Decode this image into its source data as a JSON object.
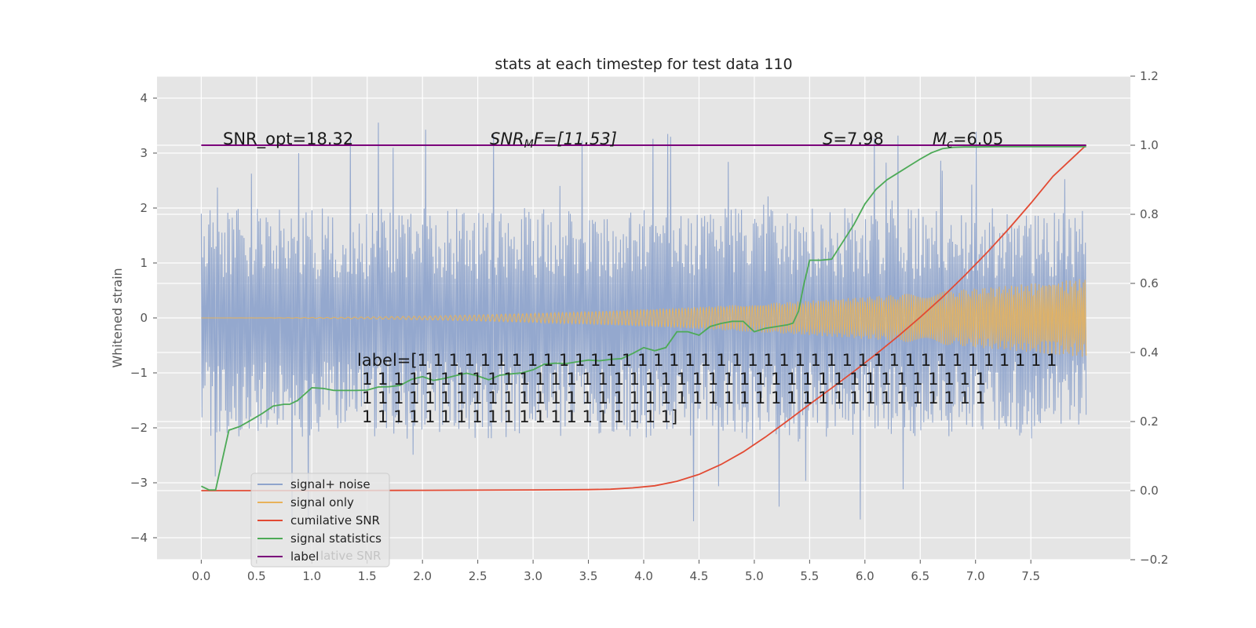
{
  "chart_data": {
    "type": "line",
    "title": "stats at each timestep for test data 110",
    "ylabel": "Whitened strain",
    "xlabel": "",
    "grid": true,
    "x_range": [
      -0.4,
      8.4
    ],
    "ylim_left": [
      -4.4,
      4.4
    ],
    "ylim_right": [
      -0.2,
      1.2
    ],
    "xticks": [
      0.0,
      0.5,
      1.0,
      1.5,
      2.0,
      2.5,
      3.0,
      3.5,
      4.0,
      4.5,
      5.0,
      5.5,
      6.0,
      6.5,
      7.0,
      7.5
    ],
    "xtick_labels": [
      "0.0",
      "0.5",
      "1.0",
      "1.5",
      "2.0",
      "2.5",
      "3.0",
      "3.5",
      "4.0",
      "4.5",
      "5.0",
      "5.5",
      "6.0",
      "6.5",
      "7.0",
      "7.5"
    ],
    "yticks_left": [
      -4,
      -3,
      -2,
      -1,
      0,
      1,
      2,
      3,
      4
    ],
    "ytick_labels_left": [
      "−4",
      "−3",
      "−2",
      "−1",
      "0",
      "1",
      "2",
      "3",
      "4"
    ],
    "yticks_right": [
      -0.2,
      0.0,
      0.2,
      0.4,
      0.6,
      0.8,
      1.0,
      1.2
    ],
    "ytick_labels_right": [
      "−0.2",
      "0.0",
      "0.2",
      "0.4",
      "0.6",
      "0.8",
      "1.0",
      "1.2"
    ],
    "colors": {
      "plot_bg": "#e5e5e5",
      "grid": "#ffffff",
      "signal_noise": "#8fa4cc",
      "signal_only": "#e8b25a",
      "cumulative_snr": "#e24a33",
      "signal_statistics": "#4daa57",
      "label": "#7b007b"
    },
    "legend": {
      "placement": "lower-left",
      "entries": [
        "signal+ noise",
        "signal only",
        "cumilative SNR",
        "signal statistics",
        "label"
      ],
      "ghost_text": "lative SNR"
    },
    "annotations": [
      {
        "text": "SNR_opt=18.32"
      },
      {
        "text": "SNR_MF=[11.53]",
        "prefix": "SNR",
        "sub": "M",
        "suffix": "F=[11.53]"
      },
      {
        "text": "S=7.98",
        "prefix": "S",
        "suffix": "=7.98"
      },
      {
        "text": "M_c=6.05",
        "prefix": "M",
        "sub": "c",
        "suffix": "=6.05"
      }
    ],
    "label_text_lines": [
      "label=[1 1 1 1 1 1 1 1 1 1 1 1 1 1 1 1 1 1 1 1 1 1 1 1 1 1 1 1 1 1 1 1 1 1 1 1 1 1 1 1 1",
      "1 1 1 1 1 1 1 1 1 1 1 1 1 1 1 1 1 1 1 1 1 1 1 1 1 1 1 1 1 1 1 1 1 1 1 1 1 1 1 1",
      "1 1 1 1 1 1 1 1 1 1 1 1 1 1 1 1 1 1 1 1 1 1 1 1 1 1 1 1 1 1 1 1 1 1 1 1 1 1 1 1",
      "1 1 1 1 1 1 1 1 1 1 1 1 1 1 1 1 1 1 1 1]"
    ],
    "series": [
      {
        "name": "signal+ noise",
        "axis": "left",
        "t_range": [
          0.0,
          8.0
        ],
        "envelope_samples": 1200,
        "typical_amplitude": [
          -2.2,
          2.0
        ],
        "peak_range": [
          -3.8,
          3.6
        ]
      },
      {
        "name": "signal only",
        "axis": "left",
        "t_range": [
          0.0,
          8.0
        ],
        "amplitude_start": 0.0,
        "amplitude_end": 0.72
      },
      {
        "name": "cumilative SNR",
        "axis": "right",
        "x": [
          0.0,
          1.0,
          2.0,
          3.0,
          3.5,
          3.7,
          3.9,
          4.1,
          4.3,
          4.5,
          4.7,
          4.9,
          5.1,
          5.3,
          5.5,
          5.7,
          5.9,
          6.1,
          6.3,
          6.5,
          6.7,
          6.9,
          7.1,
          7.3,
          7.5,
          7.7,
          7.85,
          8.0
        ],
        "y": [
          0.0,
          0.0,
          0.001,
          0.002,
          0.003,
          0.004,
          0.008,
          0.014,
          0.027,
          0.047,
          0.076,
          0.112,
          0.155,
          0.202,
          0.25,
          0.297,
          0.345,
          0.395,
          0.447,
          0.502,
          0.56,
          0.622,
          0.688,
          0.758,
          0.832,
          0.91,
          0.955,
          1.0
        ]
      },
      {
        "name": "signal statistics",
        "axis": "right",
        "x": [
          0.0,
          0.07,
          0.13,
          0.25,
          0.35,
          0.45,
          0.55,
          0.65,
          0.75,
          0.8,
          0.87,
          1.0,
          1.1,
          1.2,
          1.3,
          1.4,
          1.5,
          1.6,
          1.7,
          1.8,
          1.9,
          2.0,
          2.1,
          2.2,
          2.3,
          2.4,
          2.5,
          2.6,
          2.7,
          2.8,
          2.9,
          3.0,
          3.1,
          3.2,
          3.3,
          3.4,
          3.5,
          3.6,
          3.7,
          3.8,
          3.9,
          4.0,
          4.1,
          4.2,
          4.3,
          4.4,
          4.5,
          4.6,
          4.7,
          4.8,
          4.9,
          5.0,
          5.1,
          5.2,
          5.3,
          5.35,
          5.4,
          5.45,
          5.5,
          5.6,
          5.7,
          5.8,
          5.9,
          6.0,
          6.1,
          6.2,
          6.3,
          6.4,
          6.5,
          6.6,
          6.7,
          6.8,
          6.9,
          7.0,
          7.2,
          7.5,
          7.8,
          8.0
        ],
        "y": [
          0.013,
          0.002,
          0.002,
          0.175,
          0.186,
          0.204,
          0.223,
          0.245,
          0.25,
          0.25,
          0.261,
          0.298,
          0.296,
          0.29,
          0.29,
          0.29,
          0.291,
          0.3,
          0.301,
          0.305,
          0.322,
          0.33,
          0.319,
          0.325,
          0.333,
          0.34,
          0.332,
          0.321,
          0.334,
          0.338,
          0.341,
          0.35,
          0.366,
          0.369,
          0.368,
          0.373,
          0.378,
          0.376,
          0.38,
          0.382,
          0.397,
          0.414,
          0.405,
          0.414,
          0.46,
          0.46,
          0.45,
          0.475,
          0.484,
          0.49,
          0.49,
          0.46,
          0.47,
          0.475,
          0.48,
          0.485,
          0.52,
          0.6,
          0.667,
          0.667,
          0.67,
          0.72,
          0.77,
          0.83,
          0.872,
          0.9,
          0.92,
          0.94,
          0.96,
          0.978,
          0.99,
          0.994,
          0.995,
          0.995,
          0.996,
          0.996,
          0.996,
          0.996
        ]
      },
      {
        "name": "label",
        "axis": "right",
        "x": [
          0.0,
          8.0
        ],
        "y": [
          1.0,
          1.0
        ]
      }
    ]
  }
}
